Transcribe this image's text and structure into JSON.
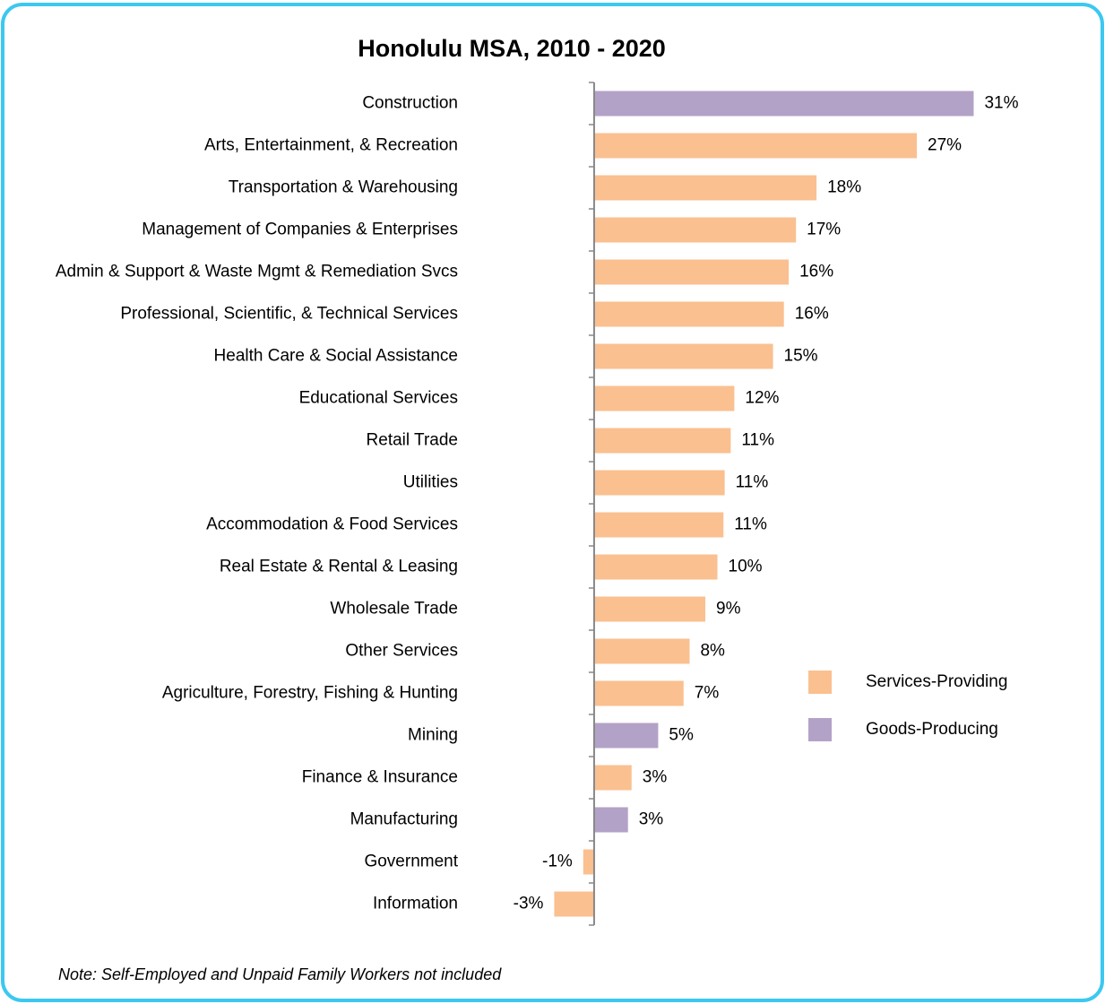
{
  "chart_data": {
    "type": "bar",
    "orientation": "horizontal",
    "title": "Honolulu MSA, 2010 - 2020",
    "categories": [
      "Construction",
      "Arts, Entertainment, & Recreation",
      "Transportation & Warehousing",
      "Management of Companies & Enterprises",
      "Admin & Support & Waste Mgmt & Remediation Svcs",
      "Professional, Scientific, & Technical Services",
      "Health Care & Social Assistance",
      "Educational Services",
      "Retail Trade",
      "Utilities",
      "Accommodation & Food Services",
      "Real Estate & Rental & Leasing",
      "Wholesale Trade",
      "Other Services",
      "Agriculture, Forestry, Fishing & Hunting",
      "Mining",
      "Finance & Insurance",
      "Manufacturing",
      "Government",
      "Information"
    ],
    "series": [
      {
        "name": "Services-Providing",
        "color": "#fac090",
        "values": [
          null,
          26.7,
          18.4,
          16.7,
          16.1,
          15.7,
          14.8,
          11.6,
          11.3,
          10.8,
          10.7,
          10.2,
          9.2,
          7.9,
          7.4,
          null,
          3.1,
          null,
          -0.9,
          -3.3
        ],
        "value_labels": [
          null,
          "27%",
          "18%",
          "17%",
          "16%",
          "16%",
          "15%",
          "12%",
          "11%",
          "11%",
          "11%",
          "10%",
          "9%",
          "8%",
          "7%",
          null,
          "3%",
          null,
          "-1%",
          "-3%"
        ]
      },
      {
        "name": "Goods-Producing",
        "color": "#b3a2c7",
        "values": [
          31.4,
          null,
          null,
          null,
          null,
          null,
          null,
          null,
          null,
          null,
          null,
          null,
          null,
          null,
          null,
          5.3,
          null,
          2.8,
          null,
          null
        ],
        "value_labels": [
          "31%",
          null,
          null,
          null,
          null,
          null,
          null,
          null,
          null,
          null,
          null,
          null,
          null,
          null,
          null,
          "5%",
          null,
          "3%",
          null,
          null
        ]
      }
    ],
    "xlim": [
      -4,
      35
    ],
    "note": "Note: Self-Employed and Unpaid Family Workers not included"
  }
}
